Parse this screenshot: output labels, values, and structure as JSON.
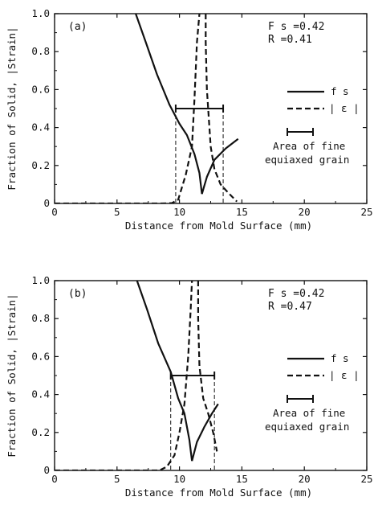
{
  "charts": [
    {
      "panel_label": "(a)",
      "params": [
        "F s =0.42",
        "R  =0.41"
      ],
      "legend": {
        "fs": "f s",
        "strain": "| ε |",
        "area": [
          "Area of fine",
          "equiaxed grain"
        ]
      }
    },
    {
      "panel_label": "(b)",
      "params": [
        "F s =0.42",
        "R  =0.47"
      ],
      "legend": {
        "fs": "f s",
        "strain": "| ε |",
        "area": [
          "Area of fine",
          "equiaxed grain"
        ]
      }
    }
  ],
  "chart_data": [
    {
      "type": "line",
      "title": "(a)",
      "annotations": [
        "F s =0.42",
        "R =0.41"
      ],
      "xlabel": "Distance from Mold Surface (mm)",
      "ylabel": "Fraction of Solid, |Strain|",
      "xlim": [
        0,
        25
      ],
      "ylim": [
        0,
        1.0
      ],
      "xticks": [
        "0",
        "5",
        "10",
        "15",
        "20",
        "25"
      ],
      "yticks": [
        "0",
        "0.2",
        "0.4",
        "0.6",
        "0.8",
        "1.0"
      ],
      "series": [
        {
          "name": "f s",
          "style": "solid",
          "segments": [
            [
              [
                6.5,
                1.0
              ],
              [
                7.3,
                0.85
              ],
              [
                8.2,
                0.68
              ],
              [
                9.2,
                0.52
              ],
              [
                10.0,
                0.42
              ],
              [
                10.6,
                0.36
              ],
              [
                11.2,
                0.26
              ],
              [
                11.6,
                0.16
              ],
              [
                11.8,
                0.05
              ]
            ],
            [
              [
                11.8,
                0.05
              ],
              [
                12.2,
                0.14
              ],
              [
                12.8,
                0.23
              ],
              [
                13.7,
                0.29
              ],
              [
                14.7,
                0.34
              ]
            ]
          ]
        },
        {
          "name": "| ε |",
          "style": "dashed",
          "segments": [
            [
              [
                0,
                0
              ],
              [
                8.6,
                0
              ],
              [
                9.4,
                0.002
              ],
              [
                9.9,
                0.02
              ],
              [
                10.5,
                0.15
              ],
              [
                11.0,
                0.3
              ],
              [
                11.2,
                0.55
              ],
              [
                11.4,
                0.85
              ],
              [
                11.6,
                1.0
              ]
            ],
            [
              [
                12.1,
                1.0
              ],
              [
                12.1,
                0.85
              ],
              [
                12.2,
                0.6
              ],
              [
                12.5,
                0.3
              ],
              [
                12.8,
                0.18
              ],
              [
                13.3,
                0.1
              ],
              [
                14.0,
                0.05
              ],
              [
                14.6,
                0.01
              ]
            ]
          ]
        }
      ],
      "fine_grain_area": {
        "x": [
          9.7,
          13.5
        ],
        "y": 0.5
      }
    },
    {
      "type": "line",
      "title": "(b)",
      "annotations": [
        "F s =0.42",
        "R =0.47"
      ],
      "xlabel": "Distance from Mold Surface (mm)",
      "ylabel": "Fraction of Solid, |Strain|",
      "xlim": [
        0,
        25
      ],
      "ylim": [
        0,
        1.0
      ],
      "xticks": [
        "0",
        "5",
        "10",
        "15",
        "20",
        "25"
      ],
      "yticks": [
        "0",
        "0.2",
        "0.4",
        "0.6",
        "0.8",
        "1.0"
      ],
      "series": [
        {
          "name": "f s",
          "style": "solid",
          "segments": [
            [
              [
                6.6,
                1.0
              ],
              [
                7.4,
                0.85
              ],
              [
                8.3,
                0.67
              ],
              [
                9.3,
                0.52
              ],
              [
                9.9,
                0.38
              ],
              [
                10.4,
                0.3
              ],
              [
                10.8,
                0.16
              ],
              [
                11.0,
                0.05
              ]
            ],
            [
              [
                11.0,
                0.05
              ],
              [
                11.4,
                0.15
              ],
              [
                12.0,
                0.23
              ],
              [
                12.6,
                0.3
              ],
              [
                13.1,
                0.35
              ]
            ]
          ]
        },
        {
          "name": "| ε |",
          "style": "dashed",
          "segments": [
            [
              [
                0,
                0
              ],
              [
                8.4,
                0
              ],
              [
                9.0,
                0.02
              ],
              [
                9.6,
                0.08
              ],
              [
                10.0,
                0.2
              ],
              [
                10.4,
                0.35
              ],
              [
                10.7,
                0.6
              ],
              [
                10.9,
                0.85
              ],
              [
                11.0,
                1.0
              ]
            ],
            [
              [
                11.5,
                1.0
              ],
              [
                11.5,
                0.8
              ],
              [
                11.6,
                0.55
              ],
              [
                11.9,
                0.38
              ],
              [
                12.3,
                0.3
              ],
              [
                12.7,
                0.2
              ],
              [
                13.0,
                0.1
              ]
            ]
          ]
        }
      ],
      "fine_grain_area": {
        "x": [
          9.3,
          12.8
        ],
        "y": 0.5
      }
    }
  ]
}
